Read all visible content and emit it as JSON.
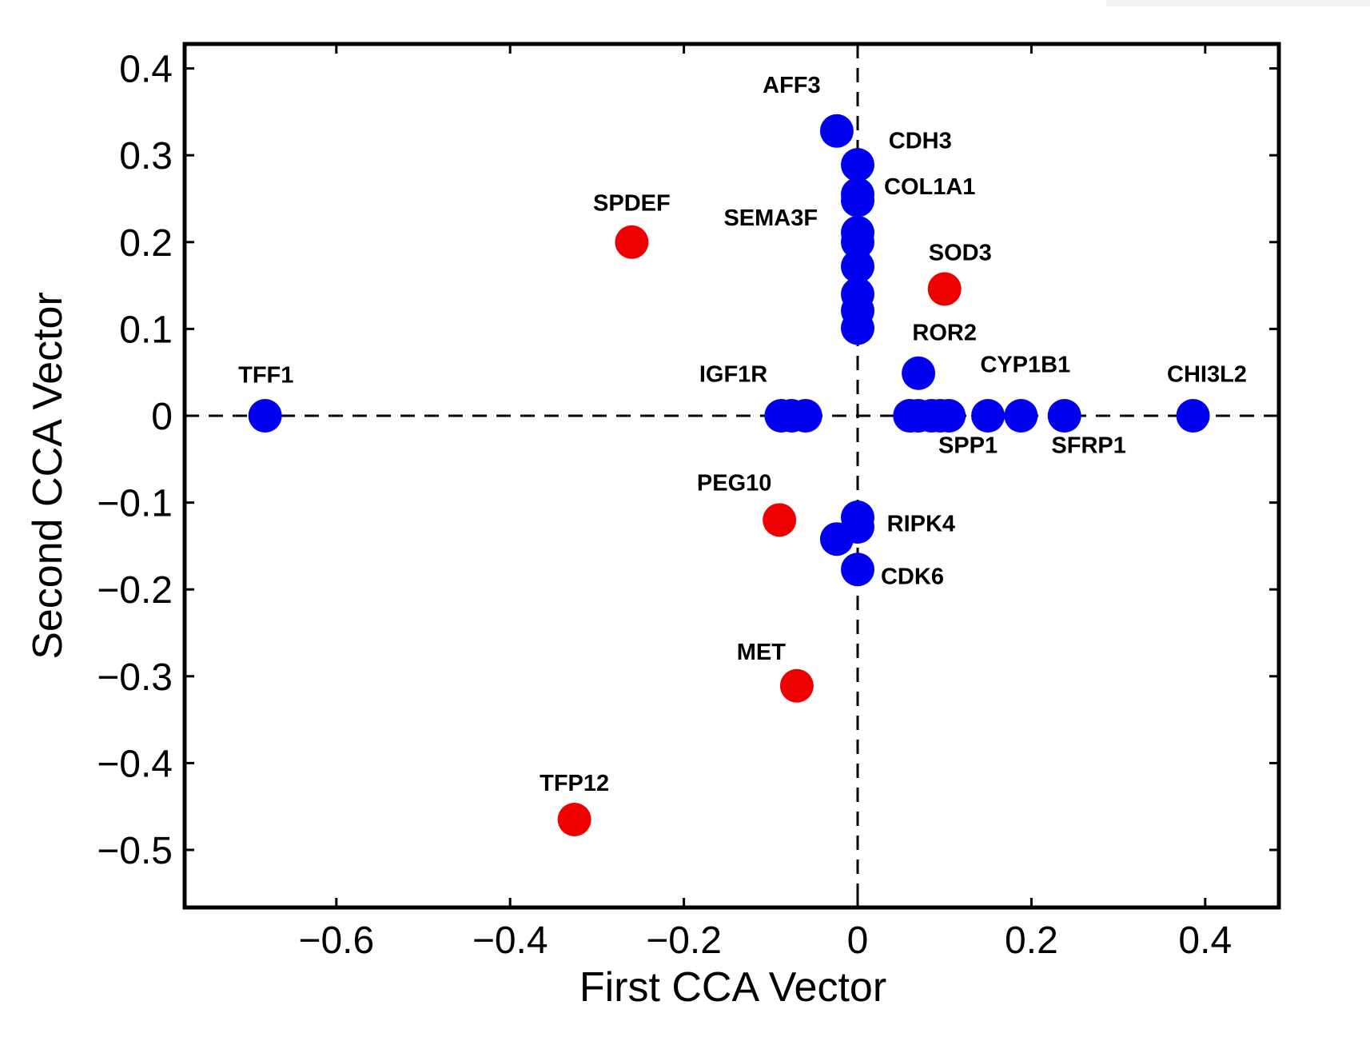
{
  "chart_data": {
    "type": "scatter",
    "title": "",
    "xlabel": "First CCA Vector",
    "ylabel": "Second CCA Vector",
    "xlim": [
      -0.78,
      0.49
    ],
    "ylim": [
      -0.565,
      0.425
    ],
    "xticks": [
      -0.6,
      -0.4,
      -0.2,
      0,
      0.2,
      0.4
    ],
    "xtick_labels": [
      "−0.6",
      "−0.4",
      "−0.2",
      "0",
      "0.2",
      "0.4"
    ],
    "yticks": [
      0.4,
      0.3,
      0.2,
      0.1,
      0,
      -0.1,
      -0.2,
      -0.3,
      -0.4,
      -0.5
    ],
    "ytick_labels": [
      "0.4",
      "0.3",
      "0.2",
      "0.1",
      "0",
      "−0.1",
      "−0.2",
      "−0.3",
      "−0.4",
      "−0.5"
    ],
    "colors": {
      "blue": "#0000ee",
      "red": "#ee0000",
      "axis": "#000000"
    },
    "reference_lines": {
      "x": 0,
      "y": 0,
      "style": "dashed"
    },
    "series": [
      {
        "name": "blue",
        "color": "#0000ee",
        "points": [
          {
            "x": -0.682,
            "y": 0.0
          },
          {
            "x": -0.088,
            "y": 0.0
          },
          {
            "x": -0.076,
            "y": 0.0
          },
          {
            "x": -0.06,
            "y": 0.0
          },
          {
            "x": -0.024,
            "y": 0.328
          },
          {
            "x": 0.0,
            "y": 0.289
          },
          {
            "x": 0.0,
            "y": 0.255
          },
          {
            "x": 0.0,
            "y": 0.248
          },
          {
            "x": 0.0,
            "y": 0.211
          },
          {
            "x": 0.0,
            "y": 0.2
          },
          {
            "x": 0.0,
            "y": 0.172
          },
          {
            "x": 0.0,
            "y": 0.14
          },
          {
            "x": 0.0,
            "y": 0.121
          },
          {
            "x": 0.0,
            "y": 0.101
          },
          {
            "x": 0.07,
            "y": 0.049
          },
          {
            "x": 0.06,
            "y": 0.0
          },
          {
            "x": 0.07,
            "y": 0.0
          },
          {
            "x": 0.085,
            "y": 0.0
          },
          {
            "x": 0.095,
            "y": 0.0
          },
          {
            "x": 0.105,
            "y": 0.0
          },
          {
            "x": 0.15,
            "y": 0.0
          },
          {
            "x": 0.188,
            "y": 0.0
          },
          {
            "x": 0.238,
            "y": 0.0
          },
          {
            "x": 0.386,
            "y": 0.0
          },
          {
            "x": 0.0,
            "y": -0.117
          },
          {
            "x": 0.0,
            "y": -0.128
          },
          {
            "x": -0.024,
            "y": -0.142
          },
          {
            "x": 0.0,
            "y": -0.177
          }
        ]
      },
      {
        "name": "red",
        "color": "#ee0000",
        "points": [
          {
            "x": -0.26,
            "y": 0.2
          },
          {
            "x": 0.1,
            "y": 0.146
          },
          {
            "x": -0.09,
            "y": -0.12
          },
          {
            "x": -0.07,
            "y": -0.311
          },
          {
            "x": -0.326,
            "y": -0.465
          }
        ]
      }
    ],
    "annotations": [
      {
        "text": "AFF3",
        "x": -0.076,
        "y": 0.372
      },
      {
        "text": "CDH3",
        "x": 0.072,
        "y": 0.308
      },
      {
        "text": "COL1A1",
        "x": 0.083,
        "y": 0.255
      },
      {
        "text": "SEMA3F",
        "x": -0.1,
        "y": 0.219
      },
      {
        "text": "SPDEF",
        "x": -0.26,
        "y": 0.236
      },
      {
        "text": "SOD3",
        "x": 0.118,
        "y": 0.179
      },
      {
        "text": "ROR2",
        "x": 0.1,
        "y": 0.087
      },
      {
        "text": "CYP1B1",
        "x": 0.193,
        "y": 0.05
      },
      {
        "text": "CHI3L2",
        "x": 0.402,
        "y": 0.039
      },
      {
        "text": "TFF1",
        "x": -0.681,
        "y": 0.038
      },
      {
        "text": "IGF1R",
        "x": -0.143,
        "y": 0.039
      },
      {
        "text": "SPP1",
        "x": 0.127,
        "y": -0.043
      },
      {
        "text": "SFRP1",
        "x": 0.266,
        "y": -0.043
      },
      {
        "text": "PEG10",
        "x": -0.142,
        "y": -0.086
      },
      {
        "text": "RIPK4",
        "x": 0.073,
        "y": -0.133
      },
      {
        "text": "CDK6",
        "x": 0.063,
        "y": -0.194
      },
      {
        "text": "MET",
        "x": -0.111,
        "y": -0.281
      },
      {
        "text": "TFP12",
        "x": -0.326,
        "y": -0.432
      }
    ]
  }
}
